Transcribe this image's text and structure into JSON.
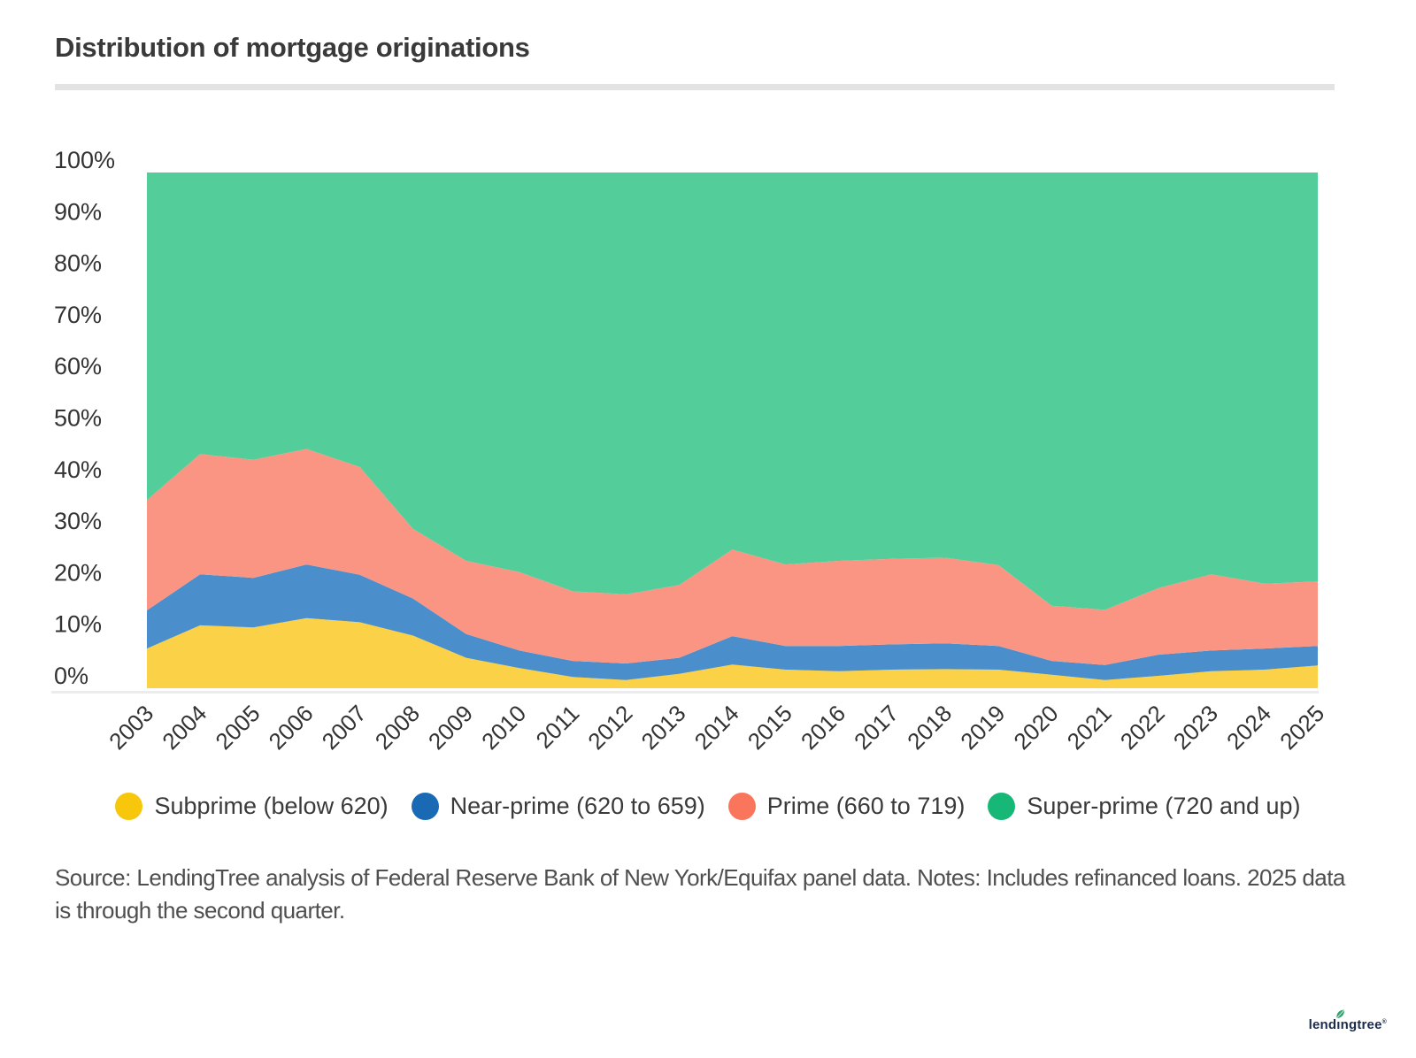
{
  "header": {
    "title": "Distribution of mortgage originations"
  },
  "chart_data": {
    "type": "area",
    "stacked": true,
    "title": "Distribution of mortgage originations",
    "x": [
      "2003",
      "2004",
      "2005",
      "2006",
      "2007",
      "2008",
      "2009",
      "2010",
      "2011",
      "2012",
      "2013",
      "2014",
      "2015",
      "2016",
      "2017",
      "2018",
      "2019",
      "2020",
      "2021",
      "2022",
      "2023",
      "2024",
      "2025"
    ],
    "series": [
      {
        "name": "Subprime (below 620)",
        "color": "#F8C70C",
        "fill": "#FBD148",
        "values": [
          7.7,
          12.2,
          11.8,
          13.6,
          12.8,
          10.2,
          5.9,
          3.9,
          2.2,
          1.6,
          2.8,
          4.6,
          3.6,
          3.3,
          3.6,
          3.7,
          3.6,
          2.6,
          1.6,
          2.4,
          3.3,
          3.6,
          4.4
        ]
      },
      {
        "name": "Near-prime (620 to 659)",
        "color": "#1A69B5",
        "fill": "#4A8FCC",
        "values": [
          7.4,
          9.9,
          9.6,
          10.4,
          9.2,
          7.2,
          4.6,
          3.4,
          3.1,
          3.2,
          3.1,
          5.5,
          4.6,
          4.9,
          4.9,
          5.0,
          4.6,
          2.7,
          2.9,
          4.1,
          4.0,
          4.1,
          3.8
        ]
      },
      {
        "name": "Prime (660 to 719)",
        "color": "#F9765C",
        "fill": "#FA9583",
        "values": [
          21.4,
          23.3,
          22.9,
          22.4,
          20.9,
          13.5,
          14.2,
          15.2,
          13.5,
          13.4,
          14.1,
          16.8,
          15.8,
          16.5,
          16.6,
          16.6,
          15.7,
          10.7,
          10.7,
          12.9,
          14.8,
          12.6,
          12.5
        ]
      },
      {
        "name": "Super-prime (720 and up)",
        "color": "#17B877",
        "fill": "#53CE9B",
        "values": [
          63.5,
          54.6,
          55.7,
          53.6,
          57.1,
          69.1,
          75.3,
          77.5,
          81.2,
          81.8,
          80.0,
          73.1,
          76.0,
          75.3,
          74.9,
          74.7,
          76.1,
          84.0,
          84.8,
          80.6,
          77.9,
          79.7,
          79.3
        ]
      }
    ],
    "yticks": [
      "0%",
      "10%",
      "20%",
      "30%",
      "40%",
      "50%",
      "60%",
      "70%",
      "80%",
      "90%",
      "100%"
    ],
    "ylim": [
      0,
      100
    ],
    "grid": false,
    "legend_position": "bottom",
    "axis_text_color": "#333333",
    "baseline_color": "#ececec"
  },
  "footer": {
    "lines": [
      "Source: LendingTree analysis of Federal Reserve Bank of New York/Equifax panel data. Notes: Includes refinanced loans. 2025 data",
      "is through the second quarter."
    ]
  },
  "logo": {
    "text": "lendingtree",
    "mark": "®",
    "leaf_color": "#2AA76B"
  }
}
